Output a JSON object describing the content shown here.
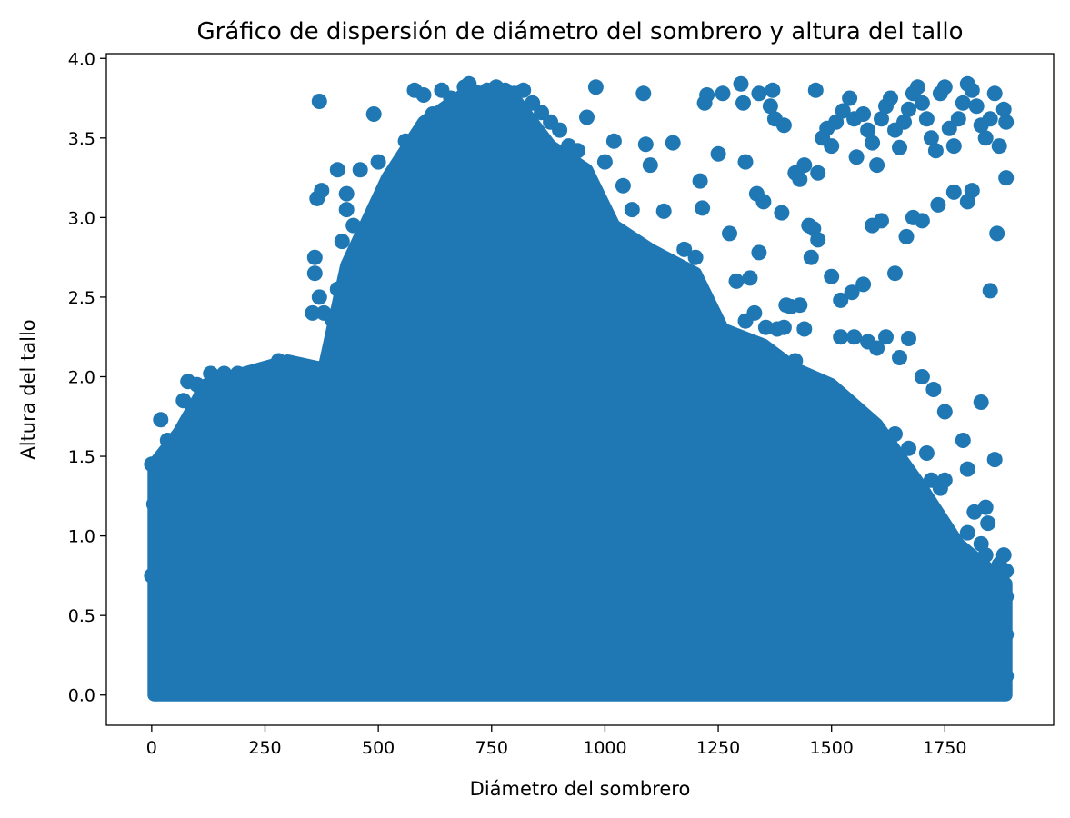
{
  "chart_data": {
    "type": "scatter",
    "title": "Gráfico de dispersión de diámetro del sombrero y altura del tallo",
    "xlabel": "Diámetro del sombrero",
    "ylabel": "Altura del tallo",
    "xlim": [
      -100,
      1990
    ],
    "ylim": [
      -0.19,
      4.03
    ],
    "xticks": [
      "0",
      "250",
      "500",
      "750",
      "1000",
      "1250",
      "1500",
      "1750"
    ],
    "yticks": [
      "0.0",
      "0.5",
      "1.0",
      "1.5",
      "2.0",
      "2.5",
      "3.0",
      "3.5",
      "4.0"
    ],
    "marker_color": "#1f77b4",
    "grid": false,
    "legend": "none",
    "points_note_free": true,
    "series": [
      {
        "points": [
          [
            0,
            1.45
          ],
          [
            5,
            1.2
          ],
          [
            10,
            1.05
          ],
          [
            15,
            0.9
          ],
          [
            0,
            0.75
          ],
          [
            10,
            0.55
          ],
          [
            20,
            0.4
          ],
          [
            15,
            0.22
          ],
          [
            30,
            0.1
          ],
          [
            40,
            0.02
          ],
          [
            20,
            1.73
          ],
          [
            35,
            1.6
          ],
          [
            50,
            1.5
          ],
          [
            70,
            1.85
          ],
          [
            80,
            1.97
          ],
          [
            100,
            1.95
          ],
          [
            110,
            1.9
          ],
          [
            130,
            2.02
          ],
          [
            160,
            2.02
          ],
          [
            190,
            2.02
          ],
          [
            220,
            2.02
          ],
          [
            250,
            2.05
          ],
          [
            280,
            2.1
          ],
          [
            310,
            2.05
          ],
          [
            340,
            2.02
          ],
          [
            370,
            2.05
          ],
          [
            175,
            1.73
          ],
          [
            200,
            1.65
          ],
          [
            120,
            1.45
          ],
          [
            150,
            1.55
          ],
          [
            360,
            2.75
          ],
          [
            360,
            2.65
          ],
          [
            370,
            2.5
          ],
          [
            380,
            2.4
          ],
          [
            355,
            2.4
          ],
          [
            400,
            2.35
          ],
          [
            410,
            2.55
          ],
          [
            420,
            2.85
          ],
          [
            430,
            3.05
          ],
          [
            445,
            2.95
          ],
          [
            365,
            3.12
          ],
          [
            375,
            3.17
          ],
          [
            370,
            3.73
          ],
          [
            410,
            3.3
          ],
          [
            430,
            3.15
          ],
          [
            460,
            3.3
          ],
          [
            490,
            3.65
          ],
          [
            500,
            3.35
          ],
          [
            520,
            3.15
          ],
          [
            540,
            3.05
          ],
          [
            560,
            3.48
          ],
          [
            580,
            3.8
          ],
          [
            600,
            3.77
          ],
          [
            620,
            3.65
          ],
          [
            640,
            3.8
          ],
          [
            660,
            3.75
          ],
          [
            690,
            3.82
          ],
          [
            700,
            3.84
          ],
          [
            720,
            3.78
          ],
          [
            740,
            3.8
          ],
          [
            760,
            3.82
          ],
          [
            780,
            3.8
          ],
          [
            800,
            3.78
          ],
          [
            820,
            3.8
          ],
          [
            840,
            3.72
          ],
          [
            860,
            3.66
          ],
          [
            880,
            3.6
          ],
          [
            900,
            3.55
          ],
          [
            920,
            3.45
          ],
          [
            940,
            3.42
          ],
          [
            960,
            3.63
          ],
          [
            980,
            3.82
          ],
          [
            1000,
            3.35
          ],
          [
            1020,
            3.48
          ],
          [
            1040,
            3.2
          ],
          [
            1060,
            3.05
          ],
          [
            1085,
            3.78
          ],
          [
            1090,
            3.46
          ],
          [
            1100,
            3.33
          ],
          [
            1130,
            3.04
          ],
          [
            1150,
            3.47
          ],
          [
            1175,
            2.8
          ],
          [
            1200,
            2.75
          ],
          [
            1210,
            3.23
          ],
          [
            1215,
            3.06
          ],
          [
            1220,
            3.72
          ],
          [
            1225,
            3.77
          ],
          [
            1250,
            3.4
          ],
          [
            1260,
            3.78
          ],
          [
            1275,
            2.9
          ],
          [
            1300,
            3.84
          ],
          [
            1305,
            3.72
          ],
          [
            1310,
            3.35
          ],
          [
            1320,
            2.62
          ],
          [
            1335,
            3.15
          ],
          [
            1340,
            3.78
          ],
          [
            1350,
            3.1
          ],
          [
            1365,
            3.7
          ],
          [
            1370,
            3.8
          ],
          [
            1375,
            3.62
          ],
          [
            1390,
            3.03
          ],
          [
            1395,
            3.58
          ],
          [
            1400,
            2.45
          ],
          [
            1420,
            3.28
          ],
          [
            1430,
            3.24
          ],
          [
            1440,
            3.33
          ],
          [
            1450,
            2.95
          ],
          [
            1455,
            2.75
          ],
          [
            1465,
            3.8
          ],
          [
            1470,
            3.28
          ],
          [
            1480,
            3.5
          ],
          [
            1490,
            3.56
          ],
          [
            1500,
            3.45
          ],
          [
            1510,
            3.6
          ],
          [
            1525,
            3.67
          ],
          [
            1540,
            3.75
          ],
          [
            1550,
            3.62
          ],
          [
            1555,
            3.38
          ],
          [
            1570,
            3.65
          ],
          [
            1580,
            3.55
          ],
          [
            1590,
            3.47
          ],
          [
            1600,
            3.33
          ],
          [
            1610,
            3.62
          ],
          [
            1620,
            3.7
          ],
          [
            1630,
            3.75
          ],
          [
            1640,
            3.55
          ],
          [
            1650,
            3.44
          ],
          [
            1660,
            3.6
          ],
          [
            1670,
            3.68
          ],
          [
            1680,
            3.78
          ],
          [
            1690,
            3.82
          ],
          [
            1700,
            3.72
          ],
          [
            1710,
            3.62
          ],
          [
            1720,
            3.5
          ],
          [
            1730,
            3.42
          ],
          [
            1740,
            3.78
          ],
          [
            1750,
            3.82
          ],
          [
            1760,
            3.56
          ],
          [
            1770,
            3.45
          ],
          [
            1780,
            3.62
          ],
          [
            1790,
            3.72
          ],
          [
            1800,
            3.84
          ],
          [
            1810,
            3.8
          ],
          [
            1820,
            3.7
          ],
          [
            1830,
            3.58
          ],
          [
            1840,
            3.5
          ],
          [
            1850,
            3.62
          ],
          [
            1860,
            3.78
          ],
          [
            1870,
            3.45
          ],
          [
            1885,
            3.6
          ],
          [
            1880,
            3.68
          ],
          [
            1885,
            3.25
          ],
          [
            1865,
            2.9
          ],
          [
            1850,
            2.54
          ],
          [
            1810,
            3.17
          ],
          [
            1800,
            3.1
          ],
          [
            1770,
            3.16
          ],
          [
            1735,
            3.08
          ],
          [
            1700,
            2.98
          ],
          [
            1680,
            3.0
          ],
          [
            1665,
            2.88
          ],
          [
            1640,
            2.65
          ],
          [
            1610,
            2.98
          ],
          [
            1590,
            2.95
          ],
          [
            1570,
            2.58
          ],
          [
            1545,
            2.53
          ],
          [
            1520,
            2.48
          ],
          [
            1500,
            2.63
          ],
          [
            1470,
            2.86
          ],
          [
            1460,
            2.93
          ],
          [
            1440,
            2.3
          ],
          [
            1430,
            2.45
          ],
          [
            1410,
            2.44
          ],
          [
            1395,
            2.31
          ],
          [
            1380,
            2.3
          ],
          [
            1355,
            2.31
          ],
          [
            1340,
            2.78
          ],
          [
            1330,
            2.4
          ],
          [
            1310,
            2.35
          ],
          [
            1290,
            2.6
          ],
          [
            1520,
            2.25
          ],
          [
            1550,
            2.25
          ],
          [
            1580,
            2.22
          ],
          [
            1600,
            2.18
          ],
          [
            1620,
            2.25
          ],
          [
            1650,
            2.12
          ],
          [
            1670,
            2.24
          ],
          [
            1700,
            2.0
          ],
          [
            1725,
            1.92
          ],
          [
            1750,
            1.78
          ],
          [
            1790,
            1.6
          ],
          [
            1800,
            1.42
          ],
          [
            1830,
            1.84
          ],
          [
            1860,
            1.48
          ],
          [
            1840,
            1.18
          ],
          [
            1845,
            1.08
          ],
          [
            1815,
            1.15
          ],
          [
            1800,
            1.02
          ],
          [
            1830,
            0.95
          ],
          [
            1840,
            0.88
          ],
          [
            1880,
            0.88
          ],
          [
            1885,
            0.78
          ],
          [
            1870,
            0.82
          ],
          [
            1885,
            0.62
          ],
          [
            1880,
            0.5
          ],
          [
            1885,
            0.38
          ],
          [
            1880,
            0.25
          ],
          [
            1885,
            0.12
          ],
          [
            1880,
            0.03
          ],
          [
            1845,
            0.05
          ],
          [
            1800,
            0.05
          ],
          [
            1760,
            0.04
          ],
          [
            1720,
            0.05
          ],
          [
            1680,
            0.04
          ],
          [
            1640,
            0.03
          ],
          [
            1600,
            0.04
          ],
          [
            1560,
            0.05
          ],
          [
            1520,
            0.04
          ],
          [
            1480,
            0.03
          ],
          [
            1440,
            0.04
          ],
          [
            1400,
            0.05
          ],
          [
            1360,
            0.04
          ],
          [
            1320,
            0.04
          ],
          [
            1280,
            0.05
          ],
          [
            1240,
            0.04
          ],
          [
            1200,
            0.03
          ],
          [
            1150,
            0.04
          ],
          [
            1100,
            0.04
          ],
          [
            1050,
            0.05
          ],
          [
            1000,
            0.04
          ],
          [
            950,
            0.03
          ],
          [
            900,
            0.04
          ],
          [
            850,
            0.05
          ],
          [
            800,
            0.04
          ],
          [
            750,
            0.03
          ],
          [
            700,
            0.04
          ],
          [
            650,
            0.05
          ],
          [
            600,
            0.04
          ],
          [
            550,
            0.03
          ],
          [
            500,
            0.04
          ],
          [
            450,
            0.05
          ],
          [
            400,
            0.04
          ],
          [
            350,
            0.03
          ],
          [
            300,
            0.04
          ],
          [
            250,
            0.05
          ],
          [
            200,
            0.04
          ],
          [
            150,
            0.03
          ],
          [
            100,
            0.04
          ],
          [
            60,
            0.05
          ],
          [
            1420,
            2.1
          ],
          [
            1450,
            2.0
          ],
          [
            1480,
            1.95
          ],
          [
            1500,
            1.85
          ],
          [
            1540,
            1.78
          ],
          [
            1560,
            1.7
          ],
          [
            1600,
            1.66
          ],
          [
            1640,
            1.64
          ],
          [
            1670,
            1.55
          ],
          [
            1710,
            1.52
          ],
          [
            1720,
            1.35
          ],
          [
            1740,
            1.3
          ],
          [
            1750,
            1.35
          ],
          [
            1700,
            1.2
          ],
          [
            1680,
            1.1
          ],
          [
            1650,
            1.0
          ],
          [
            1620,
            0.9
          ],
          [
            1700,
            0.95
          ],
          [
            1760,
            0.65
          ],
          [
            1720,
            0.6
          ]
        ]
      }
    ]
  }
}
